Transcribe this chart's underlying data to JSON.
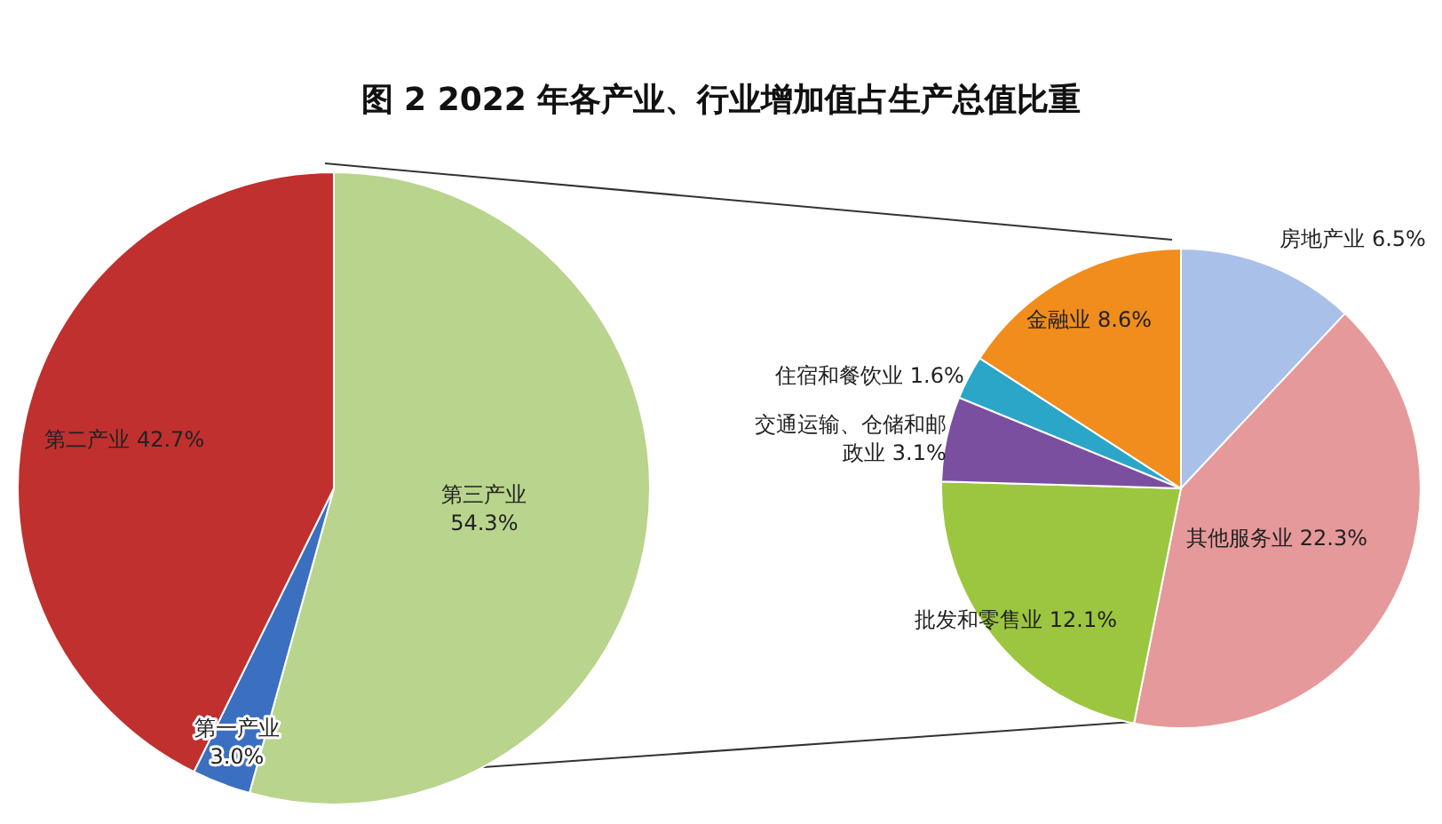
{
  "chart_data": [
    {
      "type": "pie",
      "title": "图 2   2022 年各产业、行业增加值占生产总值比重",
      "categories": [
        "第三产业",
        "第一产业",
        "第二产业"
      ],
      "values": [
        54.3,
        3.0,
        42.7
      ],
      "value_labels": [
        "54.3%",
        "3.0%",
        "42.7%"
      ],
      "colors": [
        "#b9d48c",
        "#3b6fc0",
        "#c0302e"
      ]
    },
    {
      "type": "pie",
      "categories": [
        "房地产业",
        "其他服务业",
        "批发和零售业",
        "交通运输、仓储和邮政业",
        "住宿和餐饮业",
        "金融业"
      ],
      "values": [
        6.5,
        22.3,
        12.1,
        3.1,
        1.6,
        8.6
      ],
      "value_labels": [
        "6.5%",
        "22.3%",
        "12.1%",
        "3.1%",
        "1.6%",
        "8.6%"
      ],
      "colors": [
        "#a9c1e8",
        "#e6999a",
        "#9cc63f",
        "#7b4fa0",
        "#2ba6c9",
        "#f08d1d"
      ]
    }
  ]
}
